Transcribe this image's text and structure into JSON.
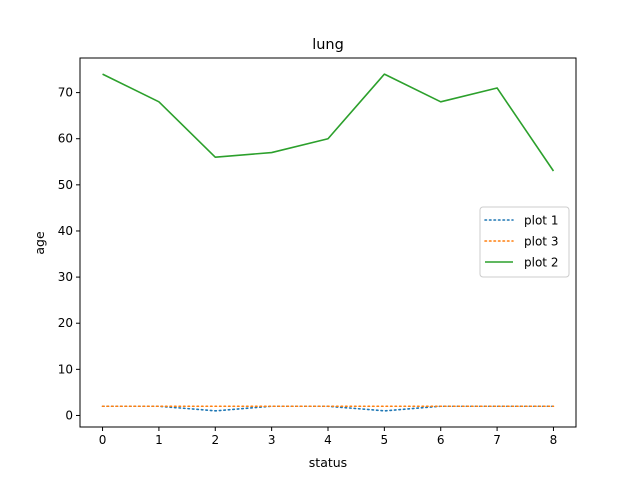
{
  "chart_data": {
    "type": "line",
    "title": "lung",
    "xlabel": "status",
    "ylabel": "age",
    "x": [
      0,
      1,
      2,
      3,
      4,
      5,
      6,
      7,
      8
    ],
    "xlim": [
      -0.4,
      8.4
    ],
    "ylim": [
      -2.5,
      77.5
    ],
    "xticks": [
      0,
      1,
      2,
      3,
      4,
      5,
      6,
      7,
      8
    ],
    "yticks": [
      0,
      10,
      20,
      30,
      40,
      50,
      60,
      70
    ],
    "grid": false,
    "legend_position": "center-right",
    "series": [
      {
        "name": "plot 1",
        "style": "dotted",
        "color": "#1f77b4",
        "values": [
          2,
          2,
          1,
          2,
          2,
          1,
          2,
          2,
          2
        ]
      },
      {
        "name": "plot 3",
        "style": "dotted",
        "color": "#ff7f0e",
        "values": [
          2,
          2,
          2,
          2,
          2,
          2,
          2,
          2,
          2
        ]
      },
      {
        "name": "plot 2",
        "style": "solid",
        "color": "#2ca02c",
        "values": [
          74,
          68,
          56,
          57,
          60,
          74,
          68,
          71,
          53
        ]
      }
    ]
  }
}
